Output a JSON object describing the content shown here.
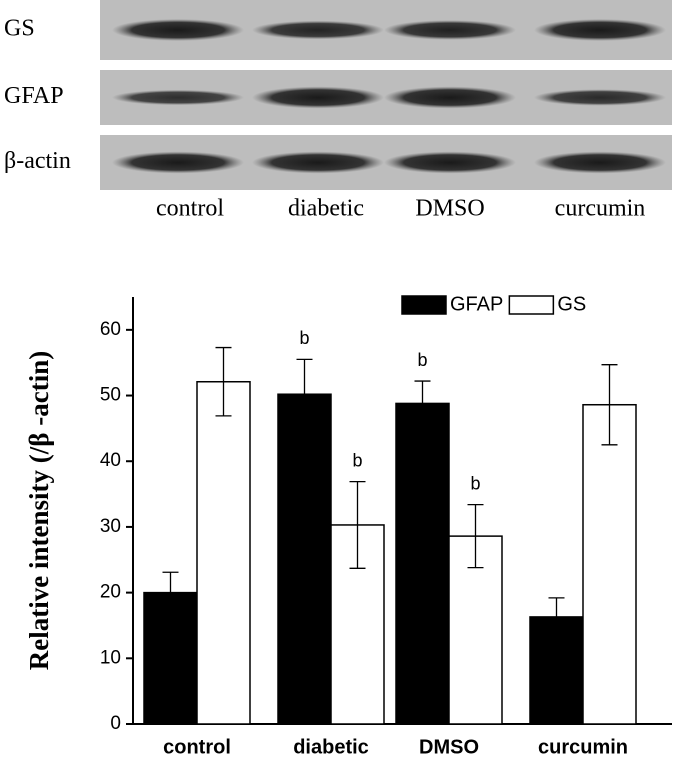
{
  "blot": {
    "rows": [
      "GS",
      "GFAP",
      "β-actin"
    ],
    "lanes": [
      "control",
      "diabetic",
      "DMSO",
      "curcumin"
    ]
  },
  "chart_data": {
    "type": "bar",
    "y_label": "Relative intensity (/β -actin)",
    "categories": [
      "control",
      "diabetic",
      "DMSO",
      "curcumin"
    ],
    "series": [
      {
        "name": "GFAP",
        "color": "#000000",
        "values": [
          20.0,
          50.2,
          48.8,
          16.3
        ],
        "errors": [
          3.1,
          5.3,
          3.4,
          2.9
        ]
      },
      {
        "name": "GS",
        "color": "#ffffff",
        "values": [
          52.1,
          30.3,
          28.6,
          48.6
        ],
        "errors": [
          5.2,
          6.6,
          4.8,
          6.1
        ]
      }
    ],
    "annotations": [
      {
        "text": "b",
        "series": 0,
        "index": 1
      },
      {
        "text": "b",
        "series": 1,
        "index": 1
      },
      {
        "text": "b",
        "series": 0,
        "index": 2
      },
      {
        "text": "b",
        "series": 1,
        "index": 2
      }
    ],
    "ylim": [
      0,
      65
    ],
    "yticks": [
      0,
      10,
      20,
      30,
      40,
      50,
      60
    ],
    "legend": "top-right"
  }
}
